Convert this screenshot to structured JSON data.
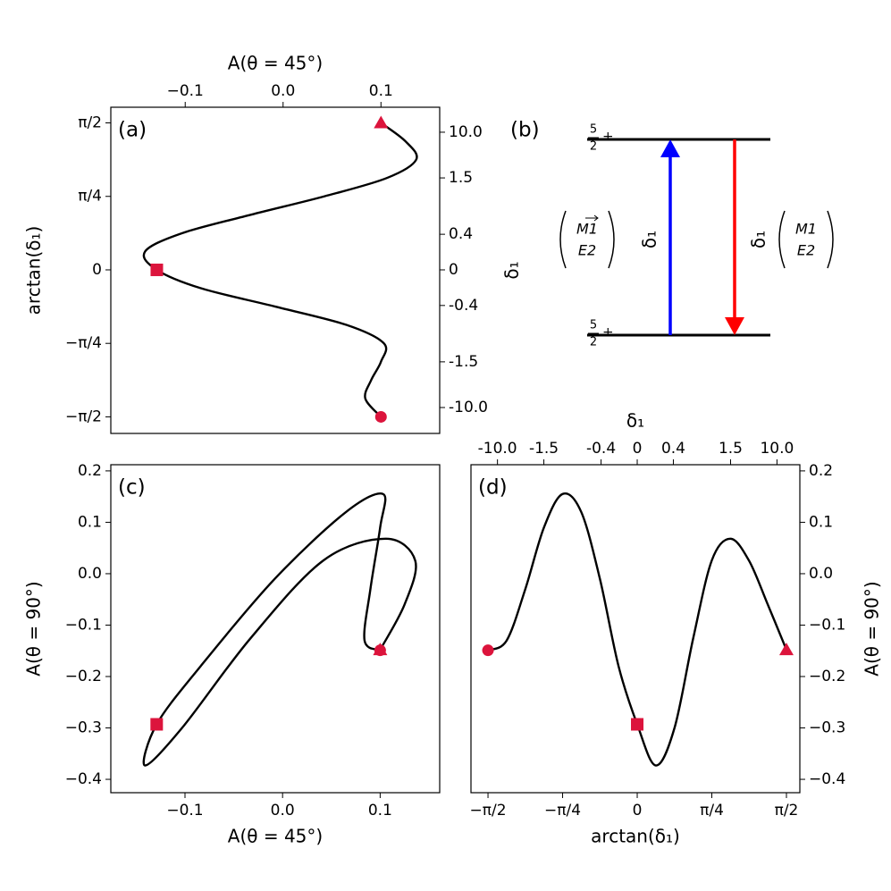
{
  "chart_data": [
    {
      "type": "line",
      "panel_label": "(a)",
      "xlabel": "A(θ = 45°)",
      "ylabel": "arctan(δ₁)",
      "y2label": "δ₁",
      "x_axis": "top",
      "y_axis": "left",
      "y2scale": "arctan",
      "xlim": [
        -0.176,
        0.16
      ],
      "ylim": [
        -1.748,
        1.738
      ],
      "xticks": [
        {
          "value": -0.1,
          "label": "−0.1"
        },
        {
          "value": 0,
          "label": "0.0"
        },
        0.1
      ],
      "yticks": [
        {
          "value": -1.5708,
          "label": "−π/2"
        },
        {
          "value": -0.7854,
          "label": "−π/4"
        },
        0,
        {
          "value": 0.7854,
          "label": "π/4"
        },
        {
          "value": 1.5708,
          "label": "π/2"
        }
      ],
      "y2ticks": [
        {
          "value": -10,
          "label": "-10.0"
        },
        -1.5,
        -0.4,
        0,
        0.4,
        1.5,
        {
          "value": 10,
          "label": "10.0"
        }
      ],
      "color": "#000000",
      "marker_color": "#dc143c",
      "x": [
        0.1,
        0.084,
        0.09,
        0.1,
        0.103,
        0.065,
        -0.008,
        -0.084,
        -0.129,
        -0.141,
        -0.103,
        -0.033,
        0.042,
        0.106,
        0.136,
        0.125,
        0.1
      ],
      "y": [
        -1.5708,
        -1.3744,
        -1.1781,
        -0.9817,
        -0.7854,
        -0.589,
        -0.3927,
        -0.1963,
        0,
        0.1963,
        0.3927,
        0.589,
        0.7854,
        0.9817,
        1.1781,
        1.3744,
        1.5708
      ],
      "markers": [
        {
          "shape": "circle",
          "x": 0.1,
          "y": -1.5708
        },
        {
          "shape": "square",
          "x": -0.129,
          "y": 0
        },
        {
          "shape": "triangle",
          "x": 0.1,
          "y": 1.5708
        }
      ]
    },
    {
      "type": "level-scheme",
      "panel_label": "(b)",
      "levels": [
        {
          "numerator": "5",
          "denominator": "2",
          "parity": "+"
        },
        {
          "numerator": "5",
          "denominator": "2",
          "parity": "+"
        }
      ],
      "transitions": [
        {
          "direction": "up",
          "color": "#0000ff",
          "label": "δ₁",
          "multipolarity": [
            "M1",
            "E2"
          ]
        },
        {
          "direction": "down",
          "color": "#ff0000",
          "label": "δ₁",
          "multipolarity": [
            "M1",
            "E2"
          ]
        }
      ]
    },
    {
      "type": "line",
      "panel_label": "(c)",
      "xlabel": "A(θ = 45°)",
      "ylabel": "A(θ = 90°)",
      "x_axis": "bottom",
      "y_axis": "left",
      "xlim": [
        -0.176,
        0.161
      ],
      "ylim": [
        -0.426,
        0.212
      ],
      "xticks": [
        {
          "value": -0.1,
          "label": "−0.1"
        },
        {
          "value": 0,
          "label": "0.0"
        },
        0.1
      ],
      "yticks": [
        {
          "value": -0.4,
          "label": "−0.4"
        },
        {
          "value": -0.3,
          "label": "−0.3"
        },
        {
          "value": -0.2,
          "label": "−0.2"
        },
        {
          "value": -0.1,
          "label": "−0.1"
        },
        {
          "value": 0,
          "label": "0.0"
        },
        0.1,
        0.2
      ],
      "color": "#000000",
      "marker_color": "#dc143c",
      "x": [
        0.1,
        0.084,
        0.09,
        0.1,
        0.103,
        0.065,
        -0.008,
        -0.084,
        -0.129,
        -0.141,
        -0.103,
        -0.033,
        0.042,
        0.106,
        0.136,
        0.125,
        0.1
      ],
      "y": [
        -0.149,
        -0.13,
        -0.03,
        0.09,
        0.155,
        0.12,
        -0.01,
        -0.18,
        -0.293,
        -0.373,
        -0.3,
        -0.126,
        0.026,
        0.068,
        0.025,
        -0.06,
        -0.148
      ],
      "markers": [
        {
          "shape": "circle",
          "x": 0.1,
          "y": -0.149
        },
        {
          "shape": "square",
          "x": -0.129,
          "y": -0.293
        },
        {
          "shape": "triangle",
          "x": 0.1,
          "y": -0.148
        }
      ]
    },
    {
      "type": "line",
      "panel_label": "(d)",
      "xlabel": "arctan(δ₁)",
      "ylabel": "A(θ = 90°)",
      "x2label": "δ₁",
      "x_axis": "bottom",
      "y_axis": "right",
      "x2scale": "arctan",
      "xlim": [
        -1.75,
        1.712
      ],
      "ylim": [
        -0.426,
        0.212
      ],
      "xticks": [
        {
          "value": -1.5708,
          "label": "−π/2"
        },
        {
          "value": -0.7854,
          "label": "−π/4"
        },
        0,
        {
          "value": 0.7854,
          "label": "π/4"
        },
        {
          "value": 1.5708,
          "label": "π/2"
        }
      ],
      "x2ticks": [
        {
          "value": -10,
          "label": "-10.0"
        },
        -1.5,
        -0.4,
        0,
        0.4,
        1.5,
        {
          "value": 10,
          "label": "10.0"
        }
      ],
      "yticks": [
        {
          "value": -0.4,
          "label": "−0.4"
        },
        {
          "value": -0.3,
          "label": "−0.3"
        },
        {
          "value": -0.2,
          "label": "−0.2"
        },
        {
          "value": -0.1,
          "label": "−0.1"
        },
        {
          "value": 0,
          "label": "0.0"
        },
        0.1,
        0.2
      ],
      "color": "#000000",
      "marker_color": "#dc143c",
      "x": [
        -1.5708,
        -1.3744,
        -1.1781,
        -0.9817,
        -0.7854,
        -0.589,
        -0.3927,
        -0.1963,
        0,
        0.1963,
        0.3927,
        0.589,
        0.7854,
        0.9817,
        1.1781,
        1.3744,
        1.5708
      ],
      "y": [
        -0.149,
        -0.13,
        -0.03,
        0.09,
        0.155,
        0.12,
        -0.01,
        -0.18,
        -0.293,
        -0.373,
        -0.3,
        -0.126,
        0.026,
        0.068,
        0.025,
        -0.06,
        -0.148
      ],
      "markers": [
        {
          "shape": "circle",
          "x": -1.5708,
          "y": -0.149
        },
        {
          "shape": "square",
          "x": 0,
          "y": -0.293
        },
        {
          "shape": "triangle",
          "x": 1.5708,
          "y": -0.148
        }
      ]
    }
  ]
}
